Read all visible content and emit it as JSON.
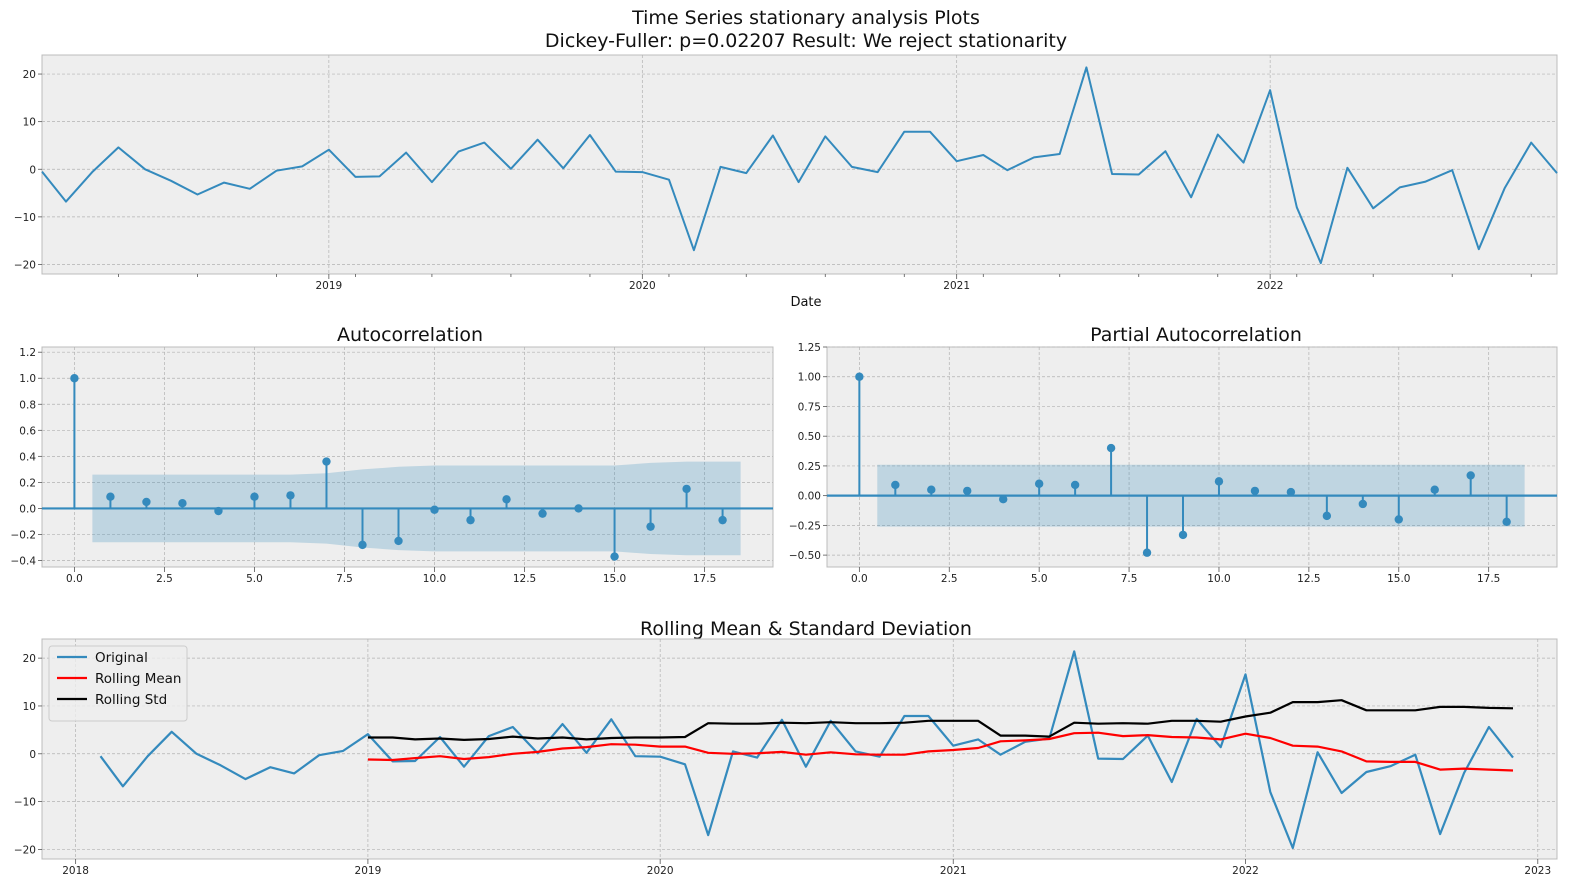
{
  "chart_data": [
    {
      "type": "line",
      "title": "Time Series stationary analysis Plots",
      "subtitle": "Dickey-Fuller: p=0.02207 Result: We reject stationarity",
      "xlabel": "Date",
      "ylabel": "",
      "x_range": [
        "2018-02",
        "2022-12"
      ],
      "xtick_labels": [
        "2019",
        "2020",
        "2021",
        "2022"
      ],
      "ylim": [
        -22,
        24
      ],
      "yticks": [
        -20,
        -10,
        0,
        10,
        20
      ],
      "grid": true,
      "color": "#348ABD",
      "series": [
        {
          "x": [
            "2018-02",
            "2018-03",
            "2018-04",
            "2018-05",
            "2018-06",
            "2018-07",
            "2018-08",
            "2018-09",
            "2018-10",
            "2018-11",
            "2018-12",
            "2019-01",
            "2019-02",
            "2019-03",
            "2019-04",
            "2019-05",
            "2019-06",
            "2019-07",
            "2019-08",
            "2019-09",
            "2019-10",
            "2019-11",
            "2019-12",
            "2020-01",
            "2020-02",
            "2020-03",
            "2020-04",
            "2020-05",
            "2020-06",
            "2020-07",
            "2020-08",
            "2020-09",
            "2020-10",
            "2020-11",
            "2020-12",
            "2021-01",
            "2021-02",
            "2021-03",
            "2021-04",
            "2021-05",
            "2021-06",
            "2021-07",
            "2021-08",
            "2021-09",
            "2021-10",
            "2021-11",
            "2021-12",
            "2022-01",
            "2022-02",
            "2022-03",
            "2022-04",
            "2022-05",
            "2022-06",
            "2022-07",
            "2022-08",
            "2022-09",
            "2022-10",
            "2022-11",
            "2022-12"
          ],
          "values": [
            -0.5,
            -6.8,
            -0.5,
            4.6,
            0,
            -2.4,
            -5.3,
            -2.8,
            -4.1,
            -0.3,
            0.6,
            4.1,
            -1.6,
            -1.5,
            3.5,
            -2.7,
            3.7,
            5.6,
            0.1,
            6.2,
            0.2,
            7.2,
            -0.5,
            -0.6,
            -2.2,
            -17,
            0.5,
            -0.8,
            7.1,
            -2.7,
            6.9,
            0.5,
            -0.6,
            7.9,
            7.9,
            1.7,
            3,
            -0.2,
            2.5,
            3.2,
            21.4,
            -1,
            -1.1,
            3.8,
            -5.9,
            7.3,
            1.4,
            16.6,
            -8,
            -19.7,
            0.3,
            -8.2,
            -3.8,
            -2.6,
            -0.2,
            -16.8,
            -4,
            5.6,
            -0.8
          ]
        }
      ]
    },
    {
      "type": "stem",
      "title": "Autocorrelation",
      "xlim": [
        -0.9,
        19.4
      ],
      "xticks": [
        0,
        2.5,
        5,
        7.5,
        10,
        12.5,
        15,
        17.5
      ],
      "xtick_labels": [
        "0.0",
        "2.5",
        "5.0",
        "7.5",
        "10.0",
        "12.5",
        "15.0",
        "17.5"
      ],
      "ylim": [
        -0.45,
        1.24
      ],
      "yticks": [
        -0.4,
        -0.2,
        0,
        0.2,
        0.4,
        0.6,
        0.8,
        1.0,
        1.2
      ],
      "ytick_labels": [
        "−0.4",
        "−0.2",
        "0.0",
        "0.2",
        "0.4",
        "0.6",
        "0.8",
        "1.0",
        "1.2"
      ],
      "grid": true,
      "lags": [
        0,
        1,
        2,
        3,
        4,
        5,
        6,
        7,
        8,
        9,
        10,
        11,
        12,
        13,
        14,
        15,
        16,
        17,
        18
      ],
      "values": [
        1.0,
        0.09,
        0.05,
        0.04,
        -0.02,
        0.09,
        0.1,
        0.36,
        -0.28,
        -0.25,
        -0.01,
        -0.09,
        0.07,
        -0.04,
        0.0,
        -0.37,
        -0.14,
        0.15,
        -0.09
      ],
      "confidence_band": {
        "lags": [
          0.5,
          1,
          2,
          3,
          4,
          5,
          6,
          7,
          8,
          9,
          10,
          11,
          12,
          13,
          14,
          15,
          16,
          17,
          18,
          18.5
        ],
        "upper": [
          0.26,
          0.26,
          0.26,
          0.26,
          0.26,
          0.26,
          0.26,
          0.27,
          0.3,
          0.32,
          0.33,
          0.33,
          0.33,
          0.33,
          0.33,
          0.33,
          0.35,
          0.36,
          0.36,
          0.36
        ],
        "lower": [
          -0.26,
          -0.26,
          -0.26,
          -0.26,
          -0.26,
          -0.26,
          -0.26,
          -0.27,
          -0.3,
          -0.32,
          -0.33,
          -0.33,
          -0.33,
          -0.33,
          -0.33,
          -0.33,
          -0.35,
          -0.36,
          -0.36,
          -0.36
        ]
      }
    },
    {
      "type": "stem",
      "title": "Partial Autocorrelation",
      "xlim": [
        -0.9,
        19.4
      ],
      "xticks": [
        0,
        2.5,
        5,
        7.5,
        10,
        12.5,
        15,
        17.5
      ],
      "xtick_labels": [
        "0.0",
        "2.5",
        "5.0",
        "7.5",
        "10.0",
        "12.5",
        "15.0",
        "17.5"
      ],
      "ylim": [
        -0.6,
        1.25
      ],
      "yticks": [
        -0.5,
        -0.25,
        0,
        0.25,
        0.5,
        0.75,
        1.0,
        1.25
      ],
      "ytick_labels": [
        "−0.50",
        "−0.25",
        "0.00",
        "0.25",
        "0.50",
        "0.75",
        "1.00",
        "1.25"
      ],
      "grid": true,
      "lags": [
        0,
        1,
        2,
        3,
        4,
        5,
        6,
        7,
        8,
        9,
        10,
        11,
        12,
        13,
        14,
        15,
        16,
        17,
        18
      ],
      "values": [
        1.0,
        0.09,
        0.05,
        0.04,
        -0.03,
        0.1,
        0.09,
        0.4,
        -0.48,
        -0.33,
        0.12,
        0.04,
        0.03,
        -0.17,
        -0.07,
        -0.2,
        0.05,
        0.17,
        -0.22
      ],
      "confidence_band": {
        "lags": [
          0.5,
          18.5
        ],
        "upper": [
          0.26,
          0.26
        ],
        "lower": [
          -0.26,
          -0.26
        ]
      }
    },
    {
      "type": "line",
      "title": "Rolling Mean & Standard Deviation",
      "x_range": [
        "2017-11-20",
        "2023-01-25"
      ],
      "xtick_labels": [
        "2018",
        "2019",
        "2020",
        "2021",
        "2022",
        "2023"
      ],
      "ylim": [
        -22,
        24
      ],
      "yticks": [
        -20,
        -10,
        0,
        10,
        20
      ],
      "grid": true,
      "legend_position": "top-left",
      "series": [
        {
          "name": "Original",
          "color": "#348ABD",
          "x": [
            "2018-02",
            "2018-03",
            "2018-04",
            "2018-05",
            "2018-06",
            "2018-07",
            "2018-08",
            "2018-09",
            "2018-10",
            "2018-11",
            "2018-12",
            "2019-01",
            "2019-02",
            "2019-03",
            "2019-04",
            "2019-05",
            "2019-06",
            "2019-07",
            "2019-08",
            "2019-09",
            "2019-10",
            "2019-11",
            "2019-12",
            "2020-01",
            "2020-02",
            "2020-03",
            "2020-04",
            "2020-05",
            "2020-06",
            "2020-07",
            "2020-08",
            "2020-09",
            "2020-10",
            "2020-11",
            "2020-12",
            "2021-01",
            "2021-02",
            "2021-03",
            "2021-04",
            "2021-05",
            "2021-06",
            "2021-07",
            "2021-08",
            "2021-09",
            "2021-10",
            "2021-11",
            "2021-12",
            "2022-01",
            "2022-02",
            "2022-03",
            "2022-04",
            "2022-05",
            "2022-06",
            "2022-07",
            "2022-08",
            "2022-09",
            "2022-10",
            "2022-11",
            "2022-12"
          ],
          "values": [
            -0.5,
            -6.8,
            -0.5,
            4.6,
            0,
            -2.4,
            -5.3,
            -2.8,
            -4.1,
            -0.3,
            0.6,
            4.1,
            -1.6,
            -1.5,
            3.5,
            -2.7,
            3.7,
            5.6,
            0.1,
            6.2,
            0.2,
            7.2,
            -0.5,
            -0.6,
            -2.2,
            -17,
            0.5,
            -0.8,
            7.1,
            -2.7,
            6.9,
            0.5,
            -0.6,
            7.9,
            7.9,
            1.7,
            3,
            -0.2,
            2.5,
            3.2,
            21.4,
            -1,
            -1.1,
            3.8,
            -5.9,
            7.3,
            1.4,
            16.6,
            -8,
            -19.7,
            0.3,
            -8.2,
            -3.8,
            -2.6,
            -0.2,
            -16.8,
            -4,
            5.6,
            -0.8
          ]
        },
        {
          "name": "Rolling Mean",
          "color": "#ff0000",
          "x": [
            "2019-01",
            "2019-02",
            "2019-03",
            "2019-04",
            "2019-05",
            "2019-06",
            "2019-07",
            "2019-08",
            "2019-09",
            "2019-10",
            "2019-11",
            "2019-12",
            "2020-01",
            "2020-02",
            "2020-03",
            "2020-04",
            "2020-05",
            "2020-06",
            "2020-07",
            "2020-08",
            "2020-09",
            "2020-10",
            "2020-11",
            "2020-12",
            "2021-01",
            "2021-02",
            "2021-03",
            "2021-04",
            "2021-05",
            "2021-06",
            "2021-07",
            "2021-08",
            "2021-09",
            "2021-10",
            "2021-11",
            "2021-12",
            "2022-01",
            "2022-02",
            "2022-03",
            "2022-04",
            "2022-05",
            "2022-06",
            "2022-07",
            "2022-08",
            "2022-09",
            "2022-10",
            "2022-11",
            "2022-12"
          ],
          "values": [
            -1.2,
            -1.3,
            -0.9,
            -0.5,
            -1.1,
            -0.7,
            0,
            0.4,
            1.1,
            1.4,
            2,
            1.9,
            1.5,
            1.5,
            0.2,
            0,
            0.1,
            0.4,
            -0.2,
            0.3,
            -0.1,
            -0.2,
            -0.2,
            0.5,
            0.8,
            1.2,
            2.6,
            2.8,
            3.1,
            4.3,
            4.4,
            3.7,
            3.9,
            3.5,
            3.4,
            3,
            4.2,
            3.3,
            1.7,
            1.5,
            0.5,
            -1.6,
            -1.7,
            -1.7,
            -3.3,
            -3.1,
            -3.3,
            -3.5
          ]
        },
        {
          "name": "Rolling Std",
          "color": "#000000",
          "x": [
            "2019-01",
            "2019-02",
            "2019-03",
            "2019-04",
            "2019-05",
            "2019-06",
            "2019-07",
            "2019-08",
            "2019-09",
            "2019-10",
            "2019-11",
            "2019-12",
            "2020-01",
            "2020-02",
            "2020-03",
            "2020-04",
            "2020-05",
            "2020-06",
            "2020-07",
            "2020-08",
            "2020-09",
            "2020-10",
            "2020-11",
            "2020-12",
            "2021-01",
            "2021-02",
            "2021-03",
            "2021-04",
            "2021-05",
            "2021-06",
            "2021-07",
            "2021-08",
            "2021-09",
            "2021-10",
            "2021-11",
            "2021-12",
            "2022-01",
            "2022-02",
            "2022-03",
            "2022-04",
            "2022-05",
            "2022-06",
            "2022-07",
            "2022-08",
            "2022-09",
            "2022-10",
            "2022-11",
            "2022-12"
          ],
          "values": [
            3.4,
            3.4,
            3,
            3.2,
            2.9,
            3.1,
            3.6,
            3.2,
            3.4,
            3,
            3.3,
            3.4,
            3.4,
            3.5,
            6.4,
            6.3,
            6.3,
            6.5,
            6.4,
            6.6,
            6.4,
            6.4,
            6.5,
            6.9,
            6.9,
            6.9,
            3.8,
            3.8,
            3.6,
            6.5,
            6.3,
            6.4,
            6.3,
            6.9,
            6.9,
            6.7,
            7.8,
            8.6,
            10.8,
            10.8,
            11.2,
            9.1,
            9.1,
            9.1,
            9.8,
            9.8,
            9.6,
            9.5
          ]
        }
      ]
    }
  ]
}
